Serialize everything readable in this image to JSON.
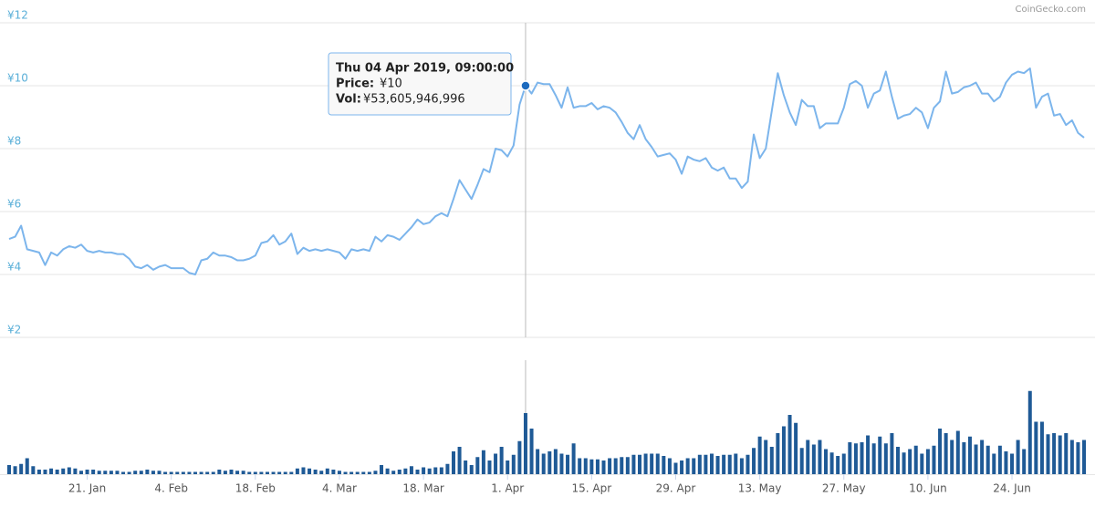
{
  "chart_data": {
    "type": "line",
    "credit": "CoinGecko.com",
    "x": [
      "2019-01-08",
      "2019-01-09",
      "2019-01-10",
      "2019-01-11",
      "2019-01-12",
      "2019-01-13",
      "2019-01-14",
      "2019-01-15",
      "2019-01-16",
      "2019-01-17",
      "2019-01-18",
      "2019-01-19",
      "2019-01-20",
      "2019-01-21",
      "2019-01-22",
      "2019-01-23",
      "2019-01-24",
      "2019-01-25",
      "2019-01-26",
      "2019-01-27",
      "2019-01-28",
      "2019-01-29",
      "2019-01-30",
      "2019-01-31",
      "2019-02-01",
      "2019-02-02",
      "2019-02-03",
      "2019-02-04",
      "2019-02-05",
      "2019-02-06",
      "2019-02-07",
      "2019-02-08",
      "2019-02-09",
      "2019-02-10",
      "2019-02-11",
      "2019-02-12",
      "2019-02-13",
      "2019-02-14",
      "2019-02-15",
      "2019-02-16",
      "2019-02-17",
      "2019-02-18",
      "2019-02-19",
      "2019-02-20",
      "2019-02-21",
      "2019-02-22",
      "2019-02-23",
      "2019-02-24",
      "2019-02-25",
      "2019-02-26",
      "2019-02-27",
      "2019-02-28",
      "2019-03-01",
      "2019-03-02",
      "2019-03-03",
      "2019-03-04",
      "2019-03-05",
      "2019-03-06",
      "2019-03-07",
      "2019-03-08",
      "2019-03-09",
      "2019-03-10",
      "2019-03-11",
      "2019-03-12",
      "2019-03-13",
      "2019-03-14",
      "2019-03-15",
      "2019-03-16",
      "2019-03-17",
      "2019-03-18",
      "2019-03-19",
      "2019-03-20",
      "2019-03-21",
      "2019-03-22",
      "2019-03-23",
      "2019-03-24",
      "2019-03-25",
      "2019-03-26",
      "2019-03-27",
      "2019-03-28",
      "2019-03-29",
      "2019-03-30",
      "2019-03-31",
      "2019-04-01",
      "2019-04-02",
      "2019-04-03",
      "2019-04-04",
      "2019-04-05",
      "2019-04-06",
      "2019-04-07",
      "2019-04-08",
      "2019-04-09",
      "2019-04-10",
      "2019-04-11",
      "2019-04-12",
      "2019-04-13",
      "2019-04-14",
      "2019-04-15",
      "2019-04-16",
      "2019-04-17",
      "2019-04-18",
      "2019-04-19",
      "2019-04-20",
      "2019-04-21",
      "2019-04-22",
      "2019-04-23",
      "2019-04-24",
      "2019-04-25",
      "2019-04-26",
      "2019-04-27",
      "2019-04-28",
      "2019-04-29",
      "2019-04-30",
      "2019-05-01",
      "2019-05-02",
      "2019-05-03",
      "2019-05-04",
      "2019-05-05",
      "2019-05-06",
      "2019-05-07",
      "2019-05-08",
      "2019-05-09",
      "2019-05-10",
      "2019-05-11",
      "2019-05-12",
      "2019-05-13",
      "2019-05-14",
      "2019-05-15",
      "2019-05-16",
      "2019-05-17",
      "2019-05-18",
      "2019-05-19",
      "2019-05-20",
      "2019-05-21",
      "2019-05-22",
      "2019-05-23",
      "2019-05-24",
      "2019-05-25",
      "2019-05-26",
      "2019-05-27",
      "2019-05-28",
      "2019-05-29",
      "2019-05-30",
      "2019-05-31",
      "2019-06-01",
      "2019-06-02",
      "2019-06-03",
      "2019-06-04",
      "2019-06-05",
      "2019-06-06",
      "2019-06-07",
      "2019-06-08",
      "2019-06-09",
      "2019-06-10",
      "2019-06-11",
      "2019-06-12",
      "2019-06-13",
      "2019-06-14",
      "2019-06-15",
      "2019-06-16",
      "2019-06-17",
      "2019-06-18",
      "2019-06-19",
      "2019-06-20",
      "2019-06-21",
      "2019-06-22",
      "2019-06-23",
      "2019-06-24",
      "2019-06-25",
      "2019-06-26",
      "2019-06-27",
      "2019-06-28",
      "2019-06-29",
      "2019-06-30",
      "2019-07-01",
      "2019-07-02",
      "2019-07-03",
      "2019-07-04",
      "2019-07-05",
      "2019-07-06"
    ],
    "series": [
      {
        "type": "line",
        "color": "#7cb5ec",
        "values": [
          5.13,
          5.2,
          5.55,
          4.8,
          4.75,
          4.7,
          4.3,
          4.7,
          4.6,
          4.8,
          4.9,
          4.85,
          4.95,
          4.75,
          4.7,
          4.75,
          4.7,
          4.7,
          4.65,
          4.65,
          4.5,
          4.25,
          4.2,
          4.3,
          4.15,
          4.25,
          4.3,
          4.2,
          4.2,
          4.2,
          4.05,
          4.0,
          4.45,
          4.5,
          4.7,
          4.6,
          4.6,
          4.55,
          4.45,
          4.45,
          4.5,
          4.6,
          5.0,
          5.05,
          5.25,
          4.95,
          5.05,
          5.3,
          4.65,
          4.85,
          4.75,
          4.8,
          4.75,
          4.8,
          4.75,
          4.7,
          4.5,
          4.8,
          4.75,
          4.8,
          4.75,
          5.2,
          5.05,
          5.25,
          5.2,
          5.1,
          5.3,
          5.5,
          5.75,
          5.6,
          5.65,
          5.85,
          5.95,
          5.85,
          6.4,
          7.0,
          6.7,
          6.4,
          6.85,
          7.35,
          7.25,
          8.0,
          7.95,
          7.75,
          8.1,
          9.4,
          10,
          9.75,
          10.1,
          10.05,
          10.05,
          9.7,
          9.3,
          9.95,
          9.3,
          9.35,
          9.35,
          9.45,
          9.25,
          9.35,
          9.3,
          9.15,
          8.85,
          8.5,
          8.3,
          8.75,
          8.3,
          8.05,
          7.75,
          7.8,
          7.85,
          7.65,
          7.2,
          7.75,
          7.65,
          7.6,
          7.7,
          7.4,
          7.3,
          7.4,
          7.05,
          7.05,
          6.75,
          6.95,
          8.45,
          7.7,
          8.0,
          9.2,
          10.4,
          9.7,
          9.15,
          8.75,
          9.55,
          9.35,
          9.35,
          8.65,
          8.8,
          8.8,
          8.8,
          9.3,
          10.05,
          10.15,
          10.0,
          9.3,
          9.75,
          9.85,
          10.45,
          9.65,
          8.95,
          9.05,
          9.1,
          9.3,
          9.15,
          8.65,
          9.3,
          9.5,
          10.45,
          9.75,
          9.8,
          9.95,
          10.0,
          10.1,
          9.75,
          9.75,
          9.5,
          9.65,
          10.1,
          10.35,
          10.45,
          10.4,
          10.55,
          9.3,
          9.65,
          9.75,
          9.05,
          9.1,
          8.75,
          8.9,
          8.5,
          8.35
        ]
      },
      {
        "type": "bar",
        "color": "#1f5a96",
        "axis": "y2",
        "values": [
          8000000000.0,
          7000000000.0,
          9000000000.0,
          14000000000.0,
          7000000000.0,
          4000000000.0,
          4000000000.0,
          5000000000.0,
          4000000000.0,
          5000000000.0,
          6000000000.0,
          5000000000.0,
          3000000000.0,
          4000000000.0,
          4000000000.0,
          3000000000.0,
          3000000000.0,
          3000000000.0,
          3000000000.0,
          2000000000.0,
          2000000000.0,
          3000000000.0,
          3000000000.0,
          4000000000.0,
          3000000000.0,
          3000000000.0,
          2000000000.0,
          2000000000.0,
          2000000000.0,
          2000000000.0,
          2000000000.0,
          2000000000.0,
          2000000000.0,
          2000000000.0,
          2000000000.0,
          4000000000.0,
          3000000000.0,
          4000000000.0,
          3000000000.0,
          3000000000.0,
          2000000000.0,
          2000000000.0,
          2000000000.0,
          2000000000.0,
          2000000000.0,
          2000000000.0,
          2000000000.0,
          2000000000.0,
          5000000000.0,
          6000000000.0,
          5000000000.0,
          4000000000.0,
          3000000000.0,
          5000000000.0,
          4000000000.0,
          3000000000.0,
          2000000000.0,
          2000000000.0,
          2000000000.0,
          2000000000.0,
          2000000000.0,
          3000000000.0,
          8000000000.0,
          5000000000.0,
          3000000000.0,
          4000000000.0,
          5000000000.0,
          7000000000.0,
          4000000000.0,
          6000000000.0,
          5000000000.0,
          6000000000.0,
          6000000000.0,
          9000000000.0,
          20000000000.0,
          24000000000.0,
          12000000000.0,
          8000000000.0,
          15000000000.0,
          21000000000.0,
          12000000000.0,
          18000000000.0,
          24000000000.0,
          12000000000.0,
          17000000000.0,
          29000000000.0,
          53605946996,
          40000000000.0,
          22000000000.0,
          18000000000.0,
          20000000000.0,
          22000000000.0,
          18000000000.0,
          17000000000.0,
          27000000000.0,
          14000000000.0,
          14000000000.0,
          13000000000.0,
          13000000000.0,
          12000000000.0,
          14000000000.0,
          14000000000.0,
          15000000000.0,
          15000000000.0,
          17000000000.0,
          17000000000.0,
          18000000000.0,
          18000000000.0,
          18000000000.0,
          16000000000.0,
          14000000000.0,
          10000000000.0,
          12000000000.0,
          14000000000.0,
          14000000000.0,
          17000000000.0,
          17000000000.0,
          18000000000.0,
          16000000000.0,
          17000000000.0,
          17000000000.0,
          18000000000.0,
          14000000000.0,
          17000000000.0,
          23000000000.0,
          33000000000.0,
          30000000000.0,
          24000000000.0,
          36000000000.0,
          42000000000.0,
          52000000000.0,
          45000000000.0,
          23000000000.0,
          30000000000.0,
          26000000000.0,
          30000000000.0,
          22000000000.0,
          19000000000.0,
          16000000000.0,
          18000000000.0,
          28000000000.0,
          27000000000.0,
          28000000000.0,
          34000000000.0,
          27000000000.0,
          33000000000.0,
          27000000000.0,
          36000000000.0,
          24000000000.0,
          19000000000.0,
          22000000000.0,
          25000000000.0,
          18000000000.0,
          22000000000.0,
          25000000000.0,
          40000000000.0,
          36000000000.0,
          30000000000.0,
          38000000000.0,
          28000000000.0,
          33000000000.0,
          26000000000.0,
          30000000000.0,
          25000000000.0,
          18000000000.0,
          25000000000.0,
          20000000000.0,
          18000000000.0,
          30000000000.0,
          22000000000.0,
          73000000000.0,
          46000000000.0,
          46000000000.0,
          35000000000.0,
          36000000000.0,
          34000000000.0,
          36000000000.0,
          30000000000.0,
          28000000000.0,
          30000000000.0
        ]
      }
    ],
    "xlim": [
      "2019-01-08",
      "2019-07-06"
    ],
    "xticks": [
      {
        "value": "2019-01-21",
        "label": "21. Jan"
      },
      {
        "value": "2019-02-04",
        "label": "4. Feb"
      },
      {
        "value": "2019-02-18",
        "label": "18. Feb"
      },
      {
        "value": "2019-03-04",
        "label": "4. Mar"
      },
      {
        "value": "2019-03-18",
        "label": "18. Mar"
      },
      {
        "value": "2019-04-01",
        "label": "1. Apr"
      },
      {
        "value": "2019-04-15",
        "label": "15. Apr"
      },
      {
        "value": "2019-04-29",
        "label": "29. Apr"
      },
      {
        "value": "2019-05-13",
        "label": "13. May"
      },
      {
        "value": "2019-05-27",
        "label": "27. May"
      },
      {
        "value": "2019-06-10",
        "label": "10. Jun"
      },
      {
        "value": "2019-06-24",
        "label": "24. Jun"
      }
    ],
    "ylim": [
      2,
      12
    ],
    "yticks": [
      {
        "value": 2,
        "label": "¥2"
      },
      {
        "value": 4,
        "label": "¥4"
      },
      {
        "value": 6,
        "label": "¥6"
      },
      {
        "value": 8,
        "label": "¥8"
      },
      {
        "value": 10,
        "label": "¥10"
      },
      {
        "value": 12,
        "label": "¥12"
      }
    ],
    "y2lim": [
      0,
      100000000000.0
    ],
    "grid": true,
    "hover_index": 86,
    "tooltip": {
      "title": "Thu 04 Apr 2019, 09:00:00",
      "price_label": "Price:",
      "price": "¥10",
      "volume_label": "Vol:",
      "volume": "¥53,605,946,996"
    }
  }
}
